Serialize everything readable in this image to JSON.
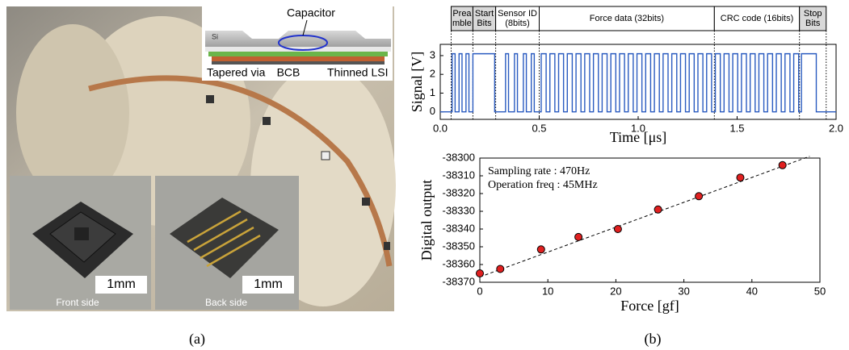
{
  "panel_a": {
    "inset_labels": {
      "capacitor": "Capacitor",
      "si": "Si",
      "tapered_via": "Tapered via",
      "bcb": "BCB",
      "thinned_lsi": "Thinned LSI"
    },
    "photos": [
      {
        "scale": "1mm",
        "caption": "Front side"
      },
      {
        "scale": "1mm",
        "caption": "Back side"
      }
    ]
  },
  "captions": [
    "(a)",
    "(b)"
  ],
  "chart_data": [
    {
      "type": "line",
      "xlabel": "Time [μs]",
      "ylabel": "Signal [V]",
      "xlim": [
        0,
        2.0
      ],
      "ylim": [
        -0.4,
        3.6
      ],
      "xticks": [
        {
          "value": 0,
          "label": "0.0"
        },
        0.5,
        {
          "value": 1,
          "label": "1.0"
        },
        1.5,
        {
          "value": 2,
          "label": "2.0"
        }
      ],
      "yticks": [
        0,
        1,
        2,
        3
      ],
      "sections": [
        {
          "lines": [
            "Prea",
            "mble"
          ],
          "start": 0.055,
          "end": 0.165,
          "bg": "#d9d9d9"
        },
        {
          "lines": [
            "Start",
            "Bits"
          ],
          "start": 0.165,
          "end": 0.28,
          "bg": "#d9d9d9"
        },
        {
          "lines": [
            "Sensor ID",
            "(8bits)"
          ],
          "start": 0.28,
          "end": 0.5,
          "bg": "#ffffff"
        },
        {
          "lines": [
            "Force data  (32bits)"
          ],
          "start": 0.5,
          "end": 1.385,
          "bg": "#ffffff"
        },
        {
          "lines": [
            "CRC code (16bits)"
          ],
          "start": 1.385,
          "end": 1.815,
          "bg": "#ffffff"
        },
        {
          "lines": [
            "Stop",
            "Bits"
          ],
          "start": 1.815,
          "end": 1.95,
          "bg": "#d9d9d9"
        }
      ],
      "series": [
        {
          "color": "#2a5bc0",
          "x": [
            0,
            0.06,
            0.06,
            0.075,
            0.075,
            0.095,
            0.095,
            0.11,
            0.11,
            0.13,
            0.13,
            0.145,
            0.145,
            0.165,
            0.165,
            0.275,
            0.275,
            0.33,
            0.33,
            0.345,
            0.345,
            0.375,
            0.375,
            0.39,
            0.39,
            0.42,
            0.42,
            0.435,
            0.435,
            0.46,
            0.46,
            0.475,
            0.475,
            0.51,
            0.51,
            0.535,
            0.535,
            0.554,
            0.554,
            0.579,
            0.579,
            0.598,
            0.598,
            0.623,
            0.623,
            0.642,
            0.642,
            0.667,
            0.667,
            0.686,
            0.686,
            0.711,
            0.711,
            0.73,
            0.73,
            0.755,
            0.755,
            0.774,
            0.774,
            0.799,
            0.799,
            0.818,
            0.818,
            0.843,
            0.843,
            0.862,
            0.862,
            0.887,
            0.887,
            0.906,
            0.906,
            0.931,
            0.931,
            0.95,
            0.95,
            0.975,
            0.975,
            0.994,
            0.994,
            1.019,
            1.019,
            1.038,
            1.038,
            1.063,
            1.063,
            1.082,
            1.082,
            1.107,
            1.107,
            1.126,
            1.126,
            1.151,
            1.151,
            1.17,
            1.17,
            1.195,
            1.195,
            1.214,
            1.214,
            1.239,
            1.239,
            1.258,
            1.258,
            1.283,
            1.283,
            1.302,
            1.302,
            1.327,
            1.327,
            1.346,
            1.346,
            1.371,
            1.371,
            1.39,
            1.39,
            1.415,
            1.415,
            1.434,
            1.434,
            1.459,
            1.459,
            1.478,
            1.478,
            1.503,
            1.503,
            1.522,
            1.522,
            1.547,
            1.547,
            1.566,
            1.566,
            1.591,
            1.591,
            1.61,
            1.61,
            1.635,
            1.635,
            1.654,
            1.654,
            1.679,
            1.679,
            1.698,
            1.698,
            1.723,
            1.723,
            1.742,
            1.742,
            1.767,
            1.767,
            1.786,
            1.786,
            1.811,
            1.811,
            1.825,
            1.825,
            1.9,
            1.9,
            2.0
          ],
          "values": [
            0,
            0,
            3.1,
            3.1,
            0,
            0,
            3.1,
            3.1,
            0,
            0,
            3.1,
            3.1,
            0,
            0,
            3.1,
            3.1,
            0,
            0,
            3.1,
            3.1,
            0,
            0,
            3.1,
            3.1,
            0,
            0,
            3.1,
            3.1,
            0,
            0,
            3.1,
            3.1,
            0,
            0,
            3.1,
            3.1,
            0,
            0,
            3.1,
            3.1,
            0,
            0,
            3.1,
            3.1,
            0,
            0,
            3.1,
            3.1,
            0,
            0,
            3.1,
            3.1,
            0,
            0,
            3.1,
            3.1,
            0,
            0,
            3.1,
            3.1,
            0,
            0,
            3.1,
            3.1,
            0,
            0,
            3.1,
            3.1,
            0,
            0,
            3.1,
            3.1,
            0,
            0,
            3.1,
            3.1,
            0,
            0,
            3.1,
            3.1,
            0,
            0,
            3.1,
            3.1,
            0,
            0,
            3.1,
            3.1,
            0,
            0,
            3.1,
            3.1,
            0,
            0,
            3.1,
            3.1,
            0,
            0,
            3.1,
            3.1,
            0,
            0,
            3.1,
            3.1,
            0,
            0,
            3.1,
            3.1,
            0,
            0,
            3.1,
            3.1,
            0,
            0,
            3.1,
            3.1,
            0,
            0,
            3.1,
            3.1,
            0,
            0,
            3.1,
            3.1,
            0,
            0,
            3.1,
            3.1,
            0,
            0,
            3.1,
            3.1,
            0,
            0,
            3.1,
            3.1,
            0,
            0,
            3.1,
            3.1,
            0,
            0,
            3.1,
            3.1,
            0,
            0,
            3.1,
            3.1,
            0,
            0,
            3.1,
            3.1,
            0,
            0,
            3.1,
            3.1,
            0,
            0
          ]
        }
      ]
    },
    {
      "type": "scatter",
      "xlabel": "Force [gf]",
      "ylabel": "Digital output",
      "annotations": [
        "Sampling rate : 470Hz",
        "Operation freq : 45MHz"
      ],
      "xlim": [
        0,
        50
      ],
      "ylim": [
        -38370,
        -38300
      ],
      "xticks": [
        0,
        10,
        20,
        30,
        40,
        50
      ],
      "yticks": [
        -38370,
        -38360,
        -38350,
        -38340,
        -38330,
        -38320,
        -38310,
        -38300
      ],
      "series": [
        {
          "color": "#e02020",
          "x": [
            0,
            3,
            9,
            14.5,
            20.3,
            26.2,
            32.2,
            38.3,
            44.5
          ],
          "values": [
            -38365,
            -38362.5,
            -38351.5,
            -38344.5,
            -38340,
            -38329,
            -38321.5,
            -38311,
            -38304
          ]
        }
      ],
      "fit_line": {
        "x": [
          0,
          48.5
        ],
        "values": [
          -38367,
          -38299
        ]
      }
    }
  ]
}
